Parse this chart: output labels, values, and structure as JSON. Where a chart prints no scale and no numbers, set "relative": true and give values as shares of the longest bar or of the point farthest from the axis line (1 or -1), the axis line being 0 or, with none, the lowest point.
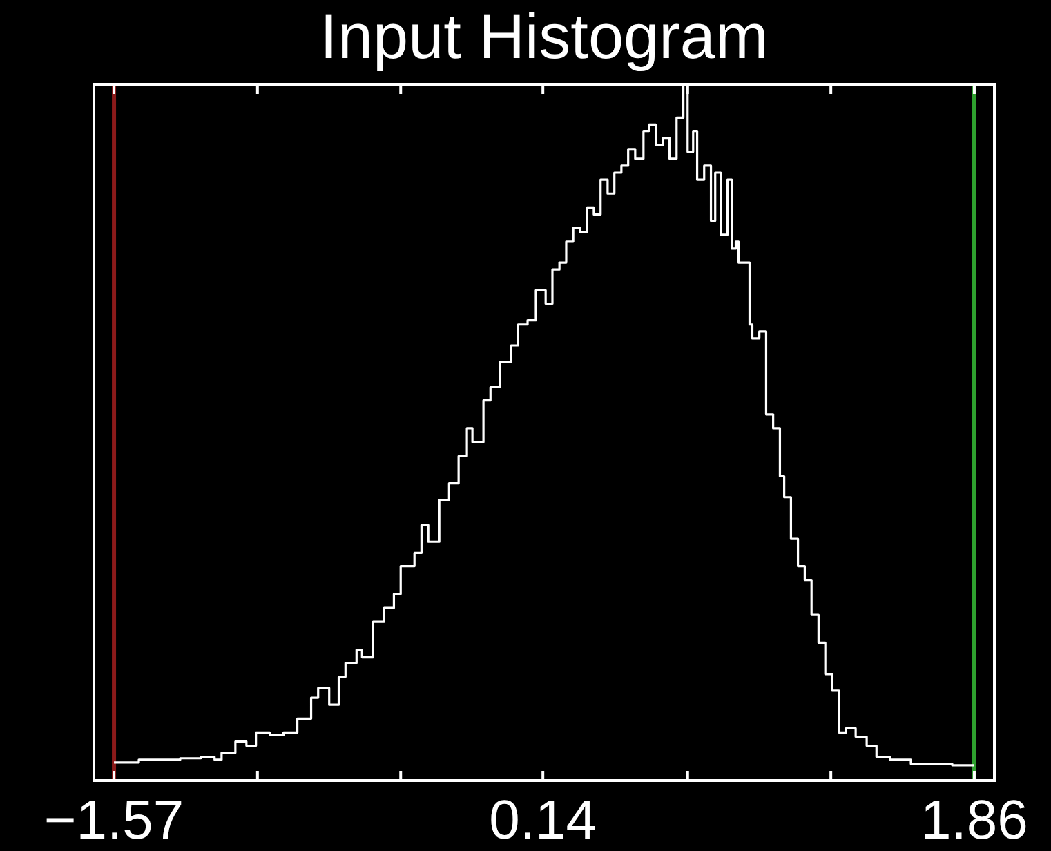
{
  "chart_data": {
    "type": "step",
    "title": "Input Histogram",
    "relative": true,
    "x": [
      -1.57,
      -1.471,
      -1.306,
      -1.224,
      -1.169,
      -1.141,
      -1.086,
      -1.042,
      -1.004,
      -0.949,
      -0.894,
      -0.839,
      -0.784,
      -0.756,
      -0.712,
      -0.674,
      -0.647,
      -0.603,
      -0.581,
      -0.537,
      -0.493,
      -0.454,
      -0.427,
      -0.372,
      -0.344,
      -0.317,
      -0.273,
      -0.234,
      -0.196,
      -0.163,
      -0.141,
      -0.097,
      -0.069,
      -0.031,
      0.013,
      0.041,
      0.079,
      0.112,
      0.151,
      0.178,
      0.206,
      0.233,
      0.261,
      0.288,
      0.316,
      0.343,
      0.37,
      0.398,
      0.425,
      0.453,
      0.48,
      0.508,
      0.541,
      0.563,
      0.59,
      0.618,
      0.645,
      0.673,
      0.7,
      0.717,
      0.739,
      0.755,
      0.783,
      0.81,
      0.827,
      0.849,
      0.876,
      0.893,
      0.909,
      0.92,
      0.948,
      0.964,
      0.975,
      1.003,
      1.03,
      1.058,
      1.085,
      1.102,
      1.129,
      1.157,
      1.184,
      1.211,
      1.239,
      1.266,
      1.294,
      1.321,
      1.349,
      1.387,
      1.431,
      1.47,
      1.525,
      1.607,
      1.772,
      1.86
    ],
    "series": [
      {
        "color": "#ffffff",
        "values": [
          0.026,
          0.03,
          0.032,
          0.034,
          0.03,
          0.04,
          0.056,
          0.05,
          0.069,
          0.065,
          0.069,
          0.089,
          0.119,
          0.133,
          0.109,
          0.149,
          0.169,
          0.188,
          0.177,
          0.228,
          0.248,
          0.268,
          0.308,
          0.327,
          0.367,
          0.343,
          0.403,
          0.427,
          0.466,
          0.506,
          0.486,
          0.546,
          0.565,
          0.601,
          0.625,
          0.655,
          0.661,
          0.704,
          0.685,
          0.734,
          0.744,
          0.774,
          0.794,
          0.788,
          0.823,
          0.813,
          0.863,
          0.843,
          0.873,
          0.883,
          0.907,
          0.893,
          0.933,
          0.942,
          0.913,
          0.923,
          0.893,
          0.952,
          1,
          0.903,
          0.933,
          0.863,
          0.883,
          0.804,
          0.873,
          0.784,
          0.863,
          0.764,
          0.774,
          0.744,
          0.744,
          0.655,
          0.635,
          0.645,
          0.526,
          0.506,
          0.437,
          0.407,
          0.347,
          0.308,
          0.288,
          0.238,
          0.198,
          0.153,
          0.129,
          0.069,
          0.075,
          0.063,
          0.05,
          0.034,
          0.03,
          0.024,
          0.022,
          0.022
        ]
      }
    ],
    "xlim": [
      -1.65,
      1.94
    ],
    "xticks": [
      {
        "value": -1.57,
        "label": "−1.57"
      },
      {
        "value": -0.998,
        "label": null
      },
      {
        "value": -0.427,
        "label": null
      },
      {
        "value": 0.14,
        "label": "0.14"
      },
      {
        "value": 0.717,
        "label": null
      },
      {
        "value": 1.288,
        "label": null
      },
      {
        "value": 1.86,
        "label": "1.86"
      }
    ],
    "ref_lines": [
      {
        "axis": "x",
        "value": -1.57,
        "color": "#8b1a1a"
      },
      {
        "axis": "x",
        "value": 1.86,
        "color": "#2ea02e"
      }
    ],
    "grid": false
  }
}
